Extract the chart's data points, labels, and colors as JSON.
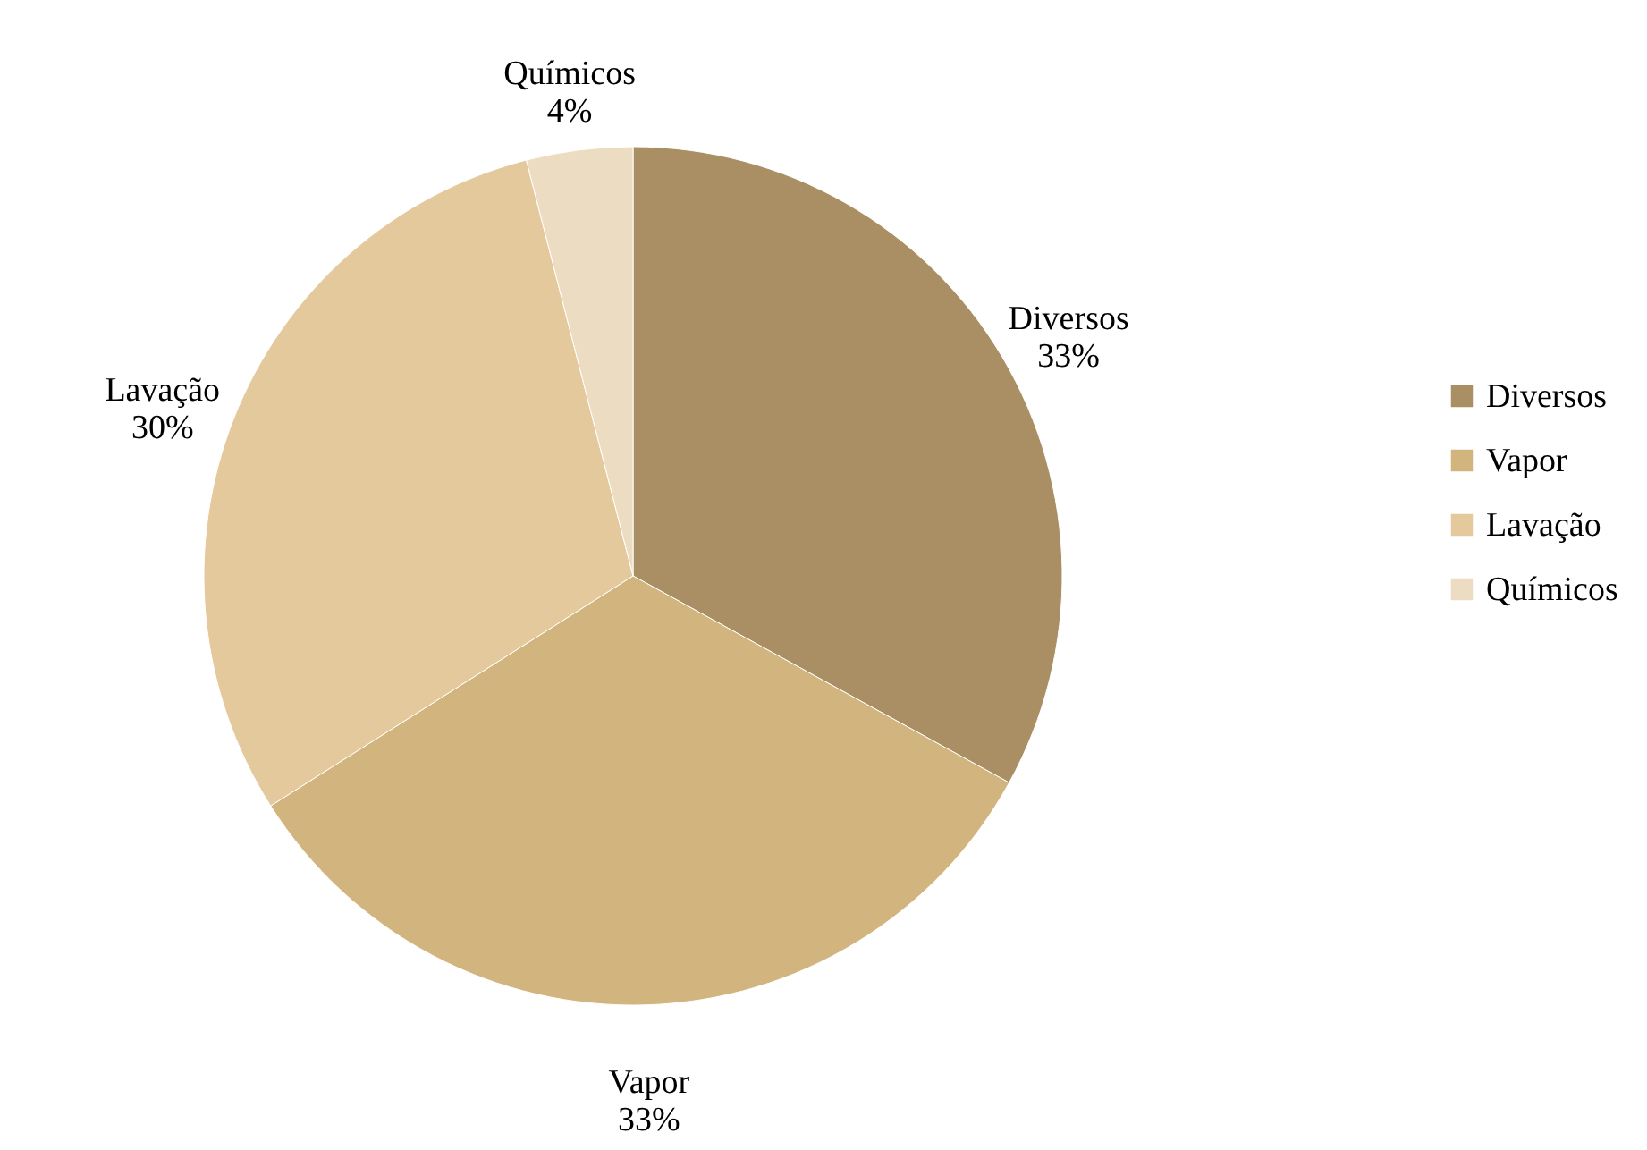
{
  "chart_data": {
    "type": "pie",
    "categories": [
      "Diversos",
      "Vapor",
      "Lavação",
      "Químicos"
    ],
    "values": [
      33,
      33,
      30,
      4
    ],
    "value_labels": [
      "33%",
      "33%",
      "30%",
      "4%"
    ],
    "colors": [
      "#a98f63",
      "#d2b47f",
      "#e4c99c",
      "#ecdcc1"
    ],
    "legend": "right"
  }
}
